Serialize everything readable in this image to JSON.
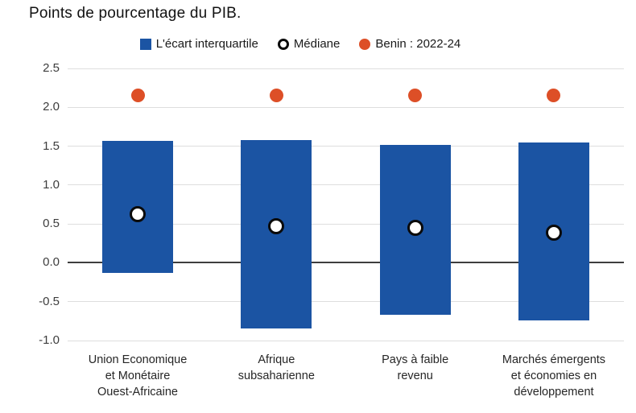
{
  "title": "Points de pourcentage du PIB.",
  "legend": {
    "iqr_label": "L'écart interquartile",
    "median_label": "Médiane",
    "benin_label": "Benin : 2022-24"
  },
  "colors": {
    "bar_blue": "#1B54A3",
    "benin_orange": "#DD4F27",
    "median_fill": "#FFFFFF",
    "median_ring": "#0A0A0A",
    "gridline": "#DEDEDE",
    "zero_line": "#3E3E3E"
  },
  "chart_data": {
    "type": "bar",
    "subtype": "interquartile-range-bars-with-median-and-benin-points",
    "title": "Points de pourcentage du PIB.",
    "categories": [
      "Union Economique et Monétaire Ouest-Africaine",
      "Afrique subsaharienne",
      "Pays à faible revenu",
      "Marchés émergents et économies en développement"
    ],
    "category_lines": [
      [
        "Union Economique",
        "et Monétaire",
        "Ouest-Africaine"
      ],
      [
        "Afrique",
        "subsaharienne"
      ],
      [
        "Pays à faible",
        "revenu"
      ],
      [
        "Marchés émergents",
        "et économies en",
        "développement"
      ]
    ],
    "series": [
      {
        "name": "L'écart interquartile",
        "type": "range-bar",
        "q1": [
          -0.13,
          -0.84,
          -0.67,
          -0.74
        ],
        "q3": [
          1.57,
          1.58,
          1.52,
          1.55
        ]
      },
      {
        "name": "Médiane",
        "type": "point",
        "values": [
          0.63,
          0.47,
          0.45,
          0.39
        ]
      },
      {
        "name": "Benin : 2022-24",
        "type": "point",
        "values": [
          2.15,
          2.15,
          2.15,
          2.15
        ]
      }
    ],
    "ylim": [
      -1.0,
      2.5
    ],
    "yticks": [
      2.5,
      2.0,
      1.5,
      1.0,
      0.5,
      0.0,
      -0.5,
      -1.0
    ],
    "ylabel": "",
    "xlabel": "",
    "grid": true,
    "legend_position": "top"
  }
}
